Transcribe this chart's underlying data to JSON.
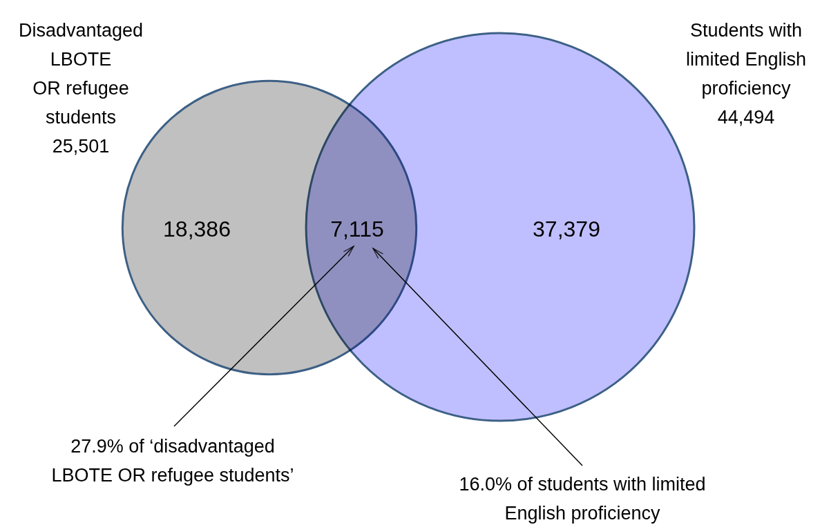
{
  "chart_data": {
    "type": "other",
    "categories": [
      "Disadvantaged\nLBOTE\nOR refugee\nstudents",
      "Students with\nlimited English\nproficiency"
    ],
    "values": [
      25501,
      44494
    ],
    "value_labels": [
      "25,501",
      "44,494"
    ],
    "colors": [
      "#c0c0c0",
      "#bfbfff"
    ],
    "annotations": [
      "18,386",
      "7,115",
      "37,379",
      "27.9% of ‘disadvantaged\nLBOTE OR refugee students’",
      "16.0% of students with limited\nEnglish proficiency"
    ]
  }
}
